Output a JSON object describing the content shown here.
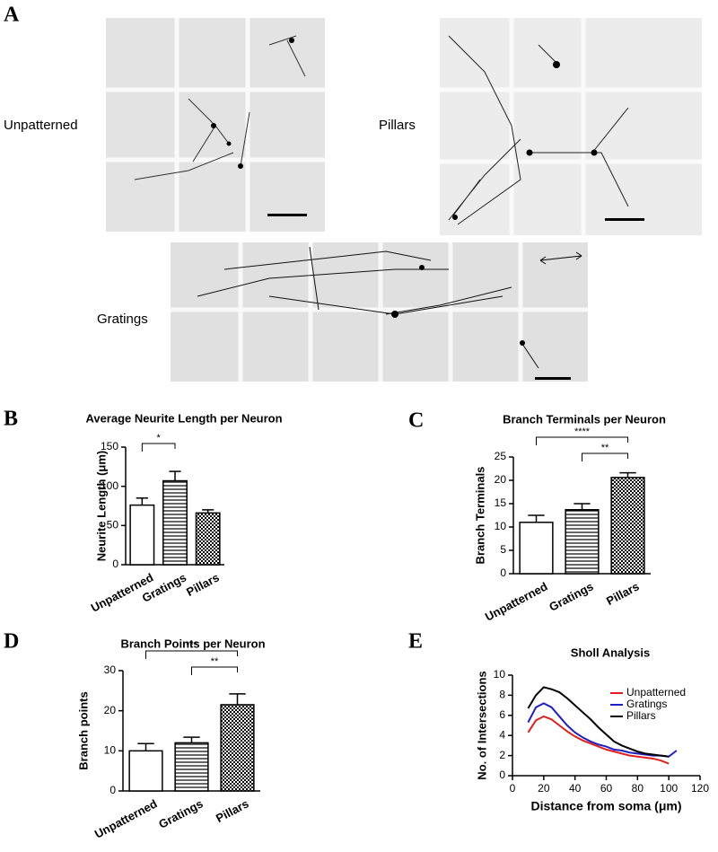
{
  "figure": {
    "panel_labels": [
      "A",
      "B",
      "C",
      "D",
      "E"
    ],
    "image_labels": [
      "Unpatterned",
      "Pillars",
      "Gratings"
    ]
  },
  "chart_data": [
    {
      "type": "bar",
      "title": "Average Neurite Length per Neuron",
      "ylabel": "Neurite Length (μm)",
      "categories": [
        "Unpatterned",
        "Gratings",
        "Pillars"
      ],
      "values": [
        76,
        107,
        66
      ],
      "errors": [
        9,
        12,
        4
      ],
      "fills": [
        "open",
        "hatch-horizontal",
        "checker"
      ],
      "color": "#000000",
      "ylim": [
        0,
        150
      ],
      "yticks": [
        0,
        50,
        100,
        150
      ],
      "significance": [
        {
          "between": [
            "Unpatterned",
            "Gratings"
          ],
          "label": "*"
        }
      ]
    },
    {
      "type": "bar",
      "title": "Branch Terminals per Neuron",
      "ylabel": "Branch Terminals",
      "categories": [
        "Unpatterned",
        "Gratings",
        "Pillars"
      ],
      "values": [
        11,
        13.7,
        20.6
      ],
      "errors": [
        1.5,
        1.3,
        1
      ],
      "fills": [
        "open",
        "hatch-horizontal",
        "checker"
      ],
      "color": "#000000",
      "ylim": [
        0,
        25
      ],
      "yticks": [
        0,
        5,
        10,
        15,
        20,
        25
      ],
      "significance": [
        {
          "between": [
            "Unpatterned",
            "Pillars"
          ],
          "label": "****"
        },
        {
          "between": [
            "Gratings",
            "Pillars"
          ],
          "label": "**"
        }
      ]
    },
    {
      "type": "bar",
      "title": "Branch Points per Neuron",
      "ylabel": "Branch points",
      "categories": [
        "Unpatterned",
        "Gratings",
        "Pillars"
      ],
      "values": [
        10,
        12,
        21.5
      ],
      "errors": [
        1.8,
        1.4,
        2.7
      ],
      "fills": [
        "open",
        "hatch-horizontal",
        "checker"
      ],
      "color": "#000000",
      "ylim": [
        0,
        30
      ],
      "yticks": [
        0,
        10,
        20,
        30
      ],
      "significance": [
        {
          "between": [
            "Unpatterned",
            "Pillars"
          ],
          "label": "***"
        },
        {
          "between": [
            "Gratings",
            "Pillars"
          ],
          "label": "**"
        }
      ]
    },
    {
      "type": "line",
      "title": "Sholl  Analysis",
      "xlabel": "Distance from soma (μm)",
      "ylabel": "No. of Intersections",
      "x": [
        10,
        15,
        20,
        25,
        30,
        35,
        40,
        45,
        50,
        55,
        60,
        65,
        70,
        75,
        80,
        85,
        90,
        95,
        100,
        105
      ],
      "series": [
        {
          "name": "Unpatterned",
          "color": "#e02020",
          "values": [
            4.3,
            5.5,
            5.9,
            5.6,
            5.0,
            4.4,
            3.9,
            3.5,
            3.2,
            2.9,
            2.6,
            2.4,
            2.2,
            2.0,
            1.9,
            1.8,
            1.7,
            1.5,
            1.2,
            null
          ]
        },
        {
          "name": "Gratings",
          "color": "#2020c0",
          "values": [
            5.3,
            6.8,
            7.2,
            6.8,
            5.9,
            5.0,
            4.3,
            3.8,
            3.4,
            3.1,
            2.9,
            2.6,
            2.5,
            2.3,
            2.2,
            2.1,
            2.0,
            2.0,
            1.9,
            2.5
          ]
        },
        {
          "name": "Pillars",
          "color": "#000000",
          "values": [
            6.7,
            8.0,
            8.8,
            8.6,
            8.3,
            7.7,
            7.0,
            6.3,
            5.6,
            4.8,
            4.1,
            3.4,
            3.0,
            2.7,
            2.4,
            2.2,
            2.1,
            2.0,
            1.9,
            null
          ]
        }
      ],
      "xlim": [
        0,
        120
      ],
      "xticks": [
        0,
        20,
        40,
        60,
        80,
        100,
        120
      ],
      "ylim": [
        0,
        10
      ],
      "yticks": [
        0,
        2,
        4,
        6,
        8,
        10
      ],
      "legend": "upper right"
    }
  ]
}
